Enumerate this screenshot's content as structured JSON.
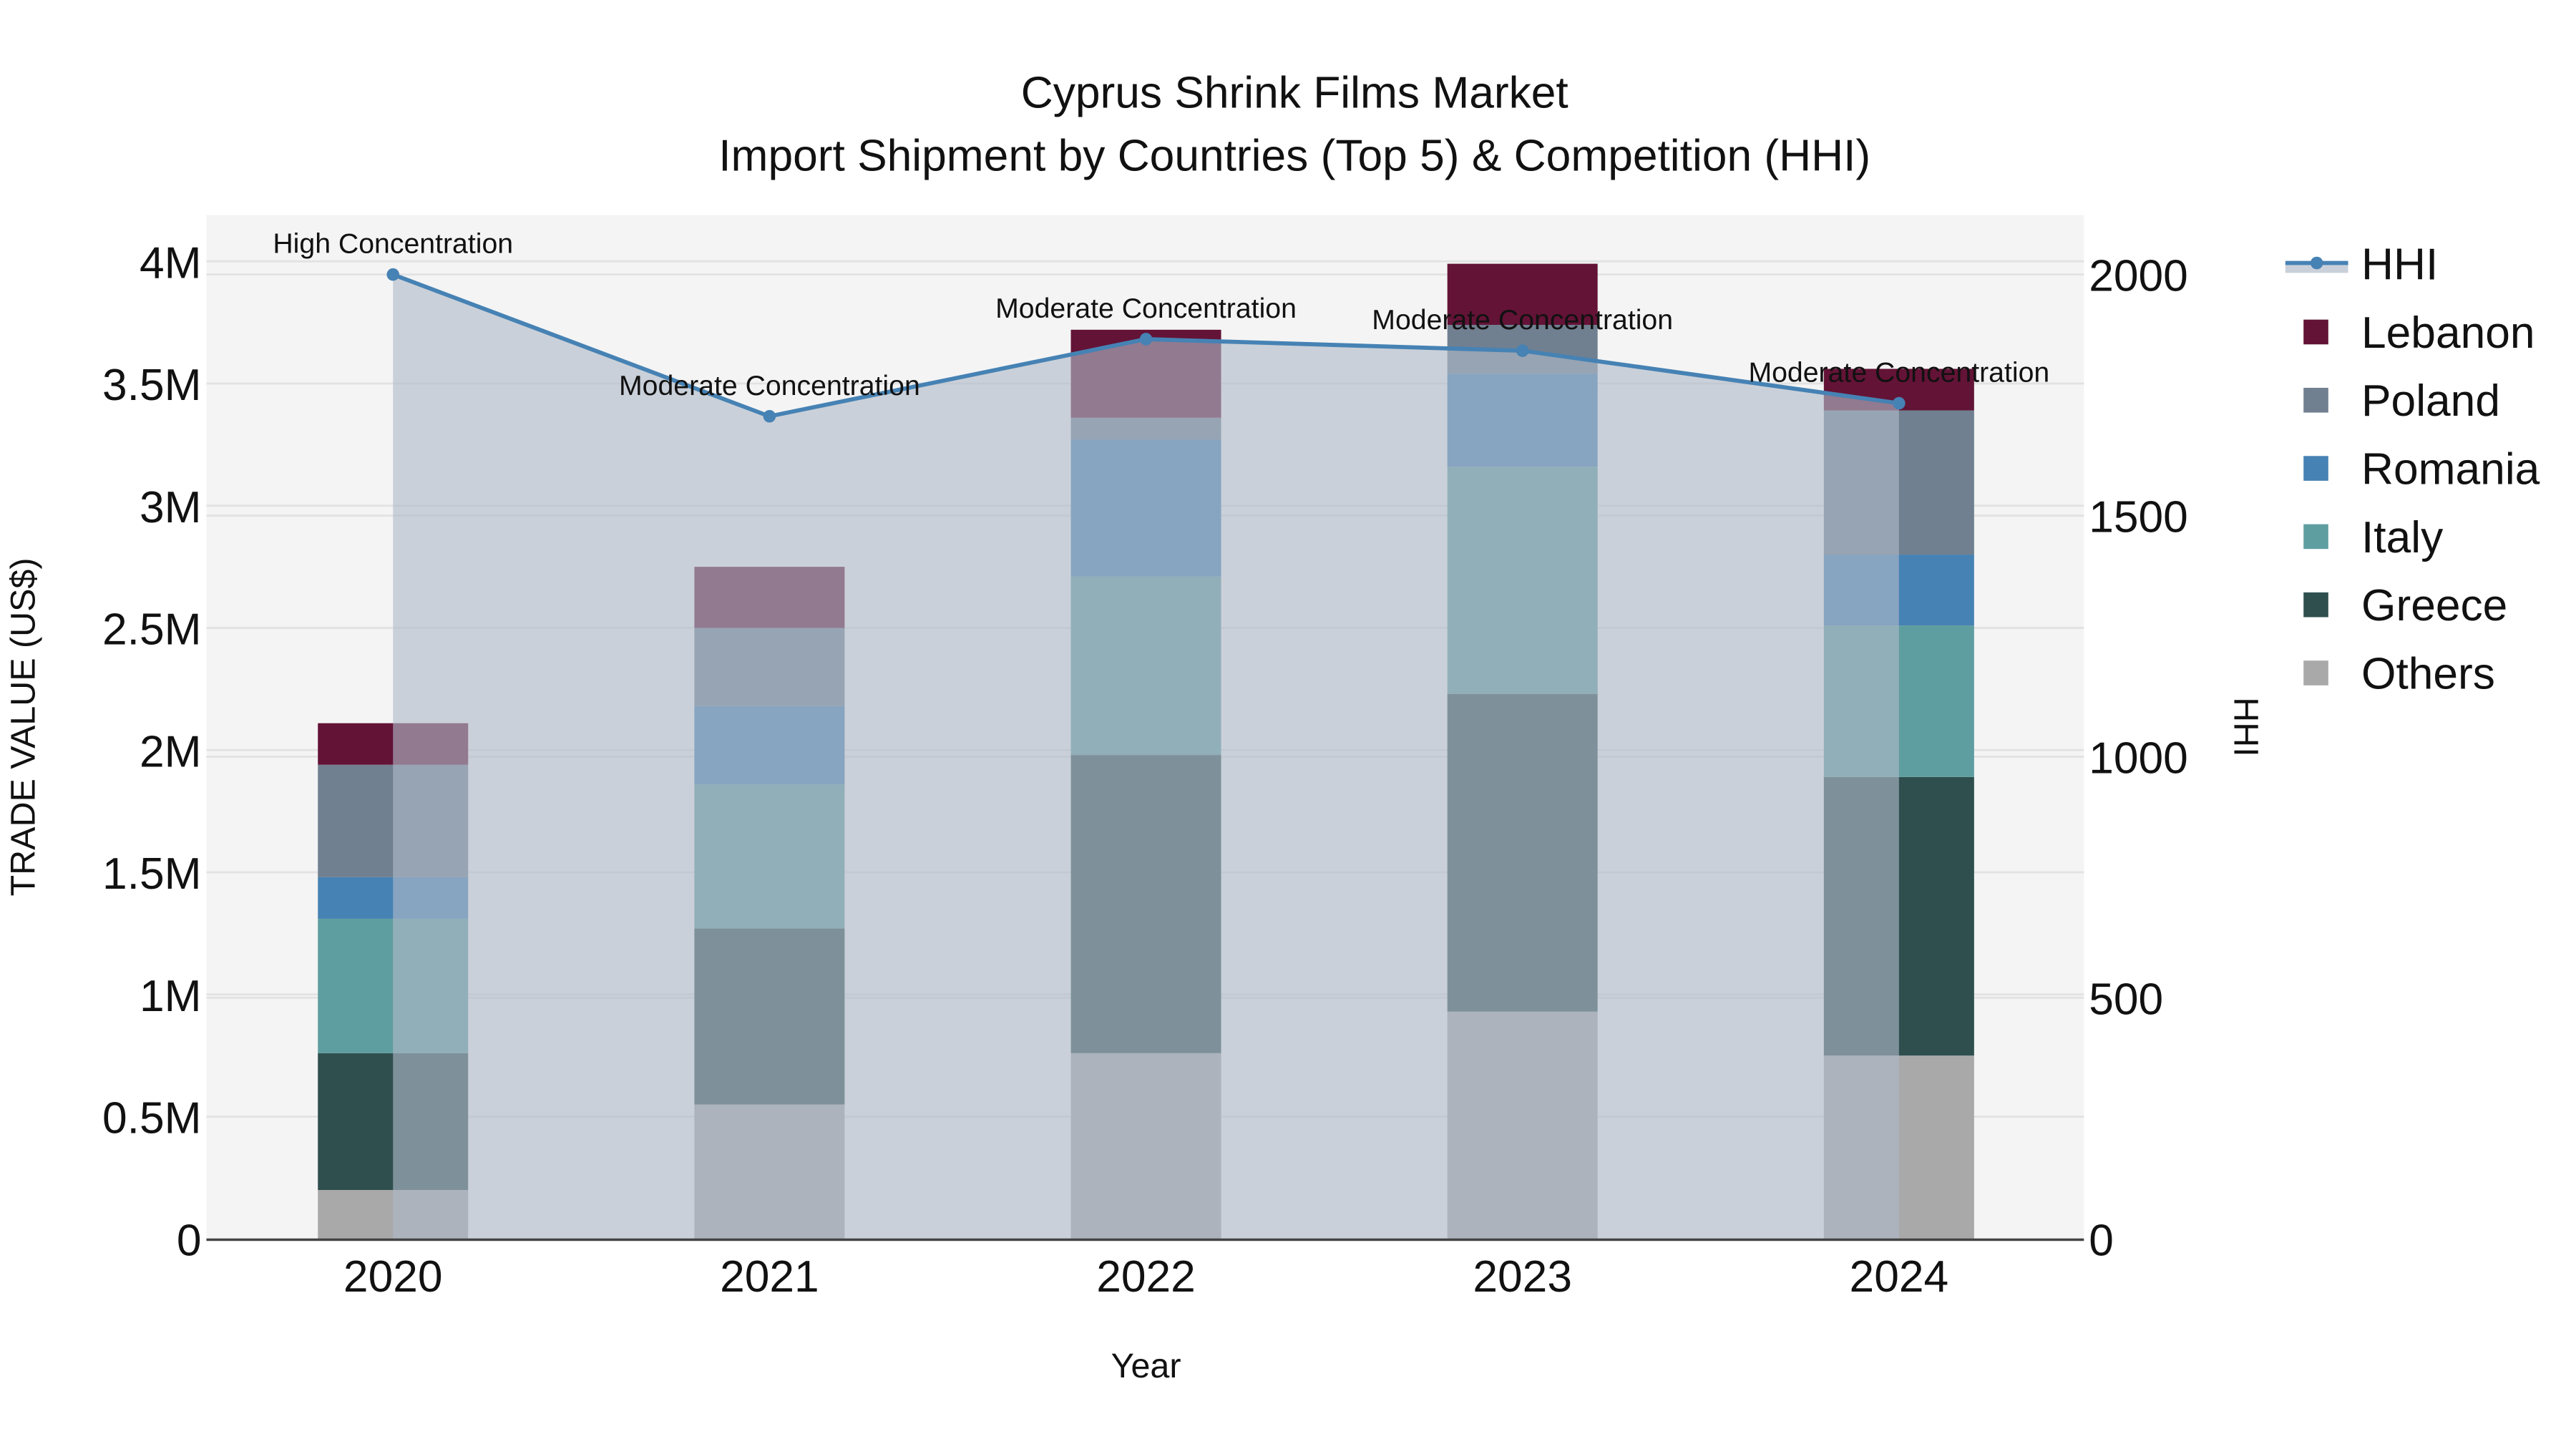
{
  "title": {
    "line1": "Cyprus Shrink Films Market",
    "line2": "Import Shipment by Countries (Top 5) & Competition (HHI)"
  },
  "axes": {
    "x_title": "Year",
    "y_left_title": "TRADE VALUE (US$)",
    "y_right_title": "HHI",
    "y_left_ticks": [
      "0",
      "0.5M",
      "1M",
      "1.5M",
      "2M",
      "2.5M",
      "3M",
      "3.5M",
      "4M"
    ],
    "y_right_ticks": [
      "0",
      "500",
      "1000",
      "1500",
      "2000"
    ],
    "x_ticks": [
      "2020",
      "2021",
      "2022",
      "2023",
      "2024"
    ]
  },
  "legend": [
    {
      "label": "HHI",
      "type": "line",
      "color": "#4682B4"
    },
    {
      "label": "Lebanon",
      "type": "box",
      "color": "#631336"
    },
    {
      "label": "Poland",
      "type": "box",
      "color": "#708090"
    },
    {
      "label": "Romania",
      "type": "box",
      "color": "#4682B4"
    },
    {
      "label": "Italy",
      "type": "box",
      "color": "#5F9EA0"
    },
    {
      "label": "Greece",
      "type": "box",
      "color": "#2F4F4F"
    },
    {
      "label": "Others",
      "type": "box",
      "color": "#A9A9A9"
    }
  ],
  "annotations": [
    {
      "year": "2020",
      "text": "High Concentration"
    },
    {
      "year": "2021",
      "text": "Moderate Concentration"
    },
    {
      "year": "2022",
      "text": "Moderate Concentration"
    },
    {
      "year": "2023",
      "text": "Moderate Concentration"
    },
    {
      "year": "2024",
      "text": "Moderate Concentration"
    }
  ],
  "chart_data": {
    "type": "bar",
    "stacked": true,
    "title": "Cyprus Shrink Films Market — Import Shipment by Countries (Top 5) & Competition (HHI)",
    "xlabel": "Year",
    "ylabel": "TRADE VALUE (US$)",
    "y2label": "HHI",
    "categories": [
      "2020",
      "2021",
      "2022",
      "2023",
      "2024"
    ],
    "ylim": [
      0,
      4200000
    ],
    "y2lim": [
      0,
      2125
    ],
    "grid": true,
    "legend_position": "right",
    "series": [
      {
        "name": "Others",
        "color": "#A9A9A9",
        "values": [
          200000,
          550000,
          760000,
          930000,
          750000
        ]
      },
      {
        "name": "Greece",
        "color": "#2F4F4F",
        "values": [
          560000,
          720000,
          1220000,
          1300000,
          1140000
        ]
      },
      {
        "name": "Italy",
        "color": "#5F9EA0",
        "values": [
          550000,
          590000,
          730000,
          930000,
          620000
        ]
      },
      {
        "name": "Romania",
        "color": "#4682B4",
        "values": [
          170000,
          320000,
          560000,
          380000,
          290000
        ]
      },
      {
        "name": "Poland",
        "color": "#708090",
        "values": [
          460000,
          320000,
          90000,
          200000,
          590000
        ]
      },
      {
        "name": "Lebanon",
        "color": "#631336",
        "values": [
          170000,
          250000,
          360000,
          250000,
          170000
        ]
      }
    ],
    "line_series": {
      "name": "HHI",
      "axis": "right",
      "color": "#4682B4",
      "fill": "tozeroy",
      "values": [
        2000,
        1706,
        1866,
        1842,
        1733
      ],
      "labels": [
        "High Concentration",
        "Moderate Concentration",
        "Moderate Concentration",
        "Moderate Concentration",
        "Moderate Concentration"
      ]
    }
  }
}
